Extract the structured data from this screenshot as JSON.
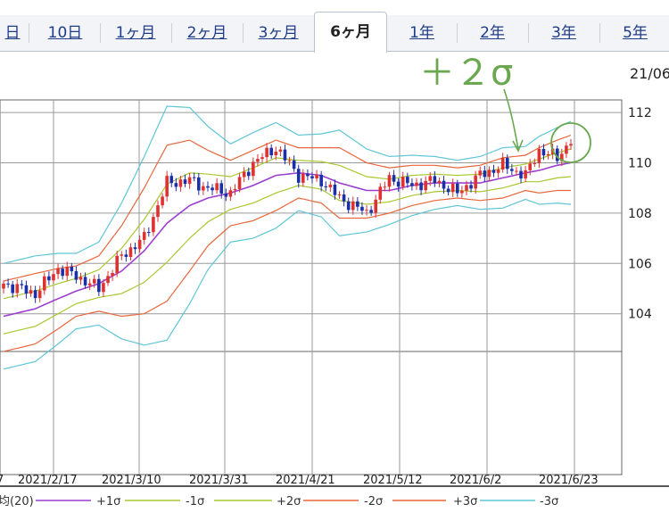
{
  "tabs": [
    {
      "label": "日"
    },
    {
      "label": "10日"
    },
    {
      "label": "1ヶ月"
    },
    {
      "label": "2ヶ月"
    },
    {
      "label": "3ヶ月"
    },
    {
      "label": "6ヶ月",
      "active": true
    },
    {
      "label": "1年"
    },
    {
      "label": "2年"
    },
    {
      "label": "3年"
    },
    {
      "label": "5年"
    }
  ],
  "annotation": {
    "text": "＋２σ",
    "color": "#6aa84f"
  },
  "top_date": "21/06",
  "chart_data": {
    "type": "candlestick",
    "ylim": [
      102.5,
      112.5
    ],
    "yticks": [
      104,
      106,
      108,
      110,
      112
    ],
    "xticks": [
      "7",
      "2021/2/17",
      "2021/3/10",
      "2021/3/31",
      "2021/4/21",
      "2021/5/12",
      "2021/6/2",
      "2021/6/23"
    ],
    "n": 126,
    "colors": {
      "up": "#e03131",
      "down": "#1b2fa8",
      "ma": "#9b3fd1",
      "s1": "#a8c830",
      "s2": "#e8663c",
      "s3": "#5fc6d6"
    },
    "anchors": {
      "idx": [
        0,
        7,
        12,
        16,
        21,
        26,
        31,
        36,
        41,
        45,
        50,
        55,
        60,
        65,
        70,
        74,
        80,
        85,
        90,
        95,
        100,
        105,
        110,
        115,
        118,
        122,
        125
      ],
      "close": [
        105.2,
        104.8,
        105.8,
        105.5,
        105.0,
        106.3,
        107.0,
        109.2,
        109.3,
        109.0,
        108.8,
        110.0,
        110.6,
        109.5,
        109.3,
        108.6,
        108.0,
        109.4,
        109.1,
        109.3,
        108.8,
        109.5,
        109.9,
        109.5,
        110.5,
        110.2,
        110.9
      ],
      "ma": [
        103.9,
        104.2,
        104.6,
        104.9,
        105.2,
        105.7,
        106.5,
        107.6,
        108.3,
        108.6,
        108.8,
        109.1,
        109.5,
        109.6,
        109.5,
        109.2,
        108.9,
        108.9,
        109.1,
        109.2,
        109.2,
        109.2,
        109.4,
        109.6,
        109.7,
        109.9,
        110.0
      ],
      "sd": [
        0.7,
        0.7,
        0.6,
        0.5,
        0.55,
        0.9,
        1.25,
        1.55,
        1.3,
        0.95,
        0.65,
        0.7,
        0.7,
        0.5,
        0.55,
        0.7,
        0.55,
        0.45,
        0.4,
        0.35,
        0.3,
        0.35,
        0.4,
        0.35,
        0.45,
        0.5,
        0.55
      ]
    }
  },
  "legend": [
    {
      "label": "均(20)",
      "color": "#9b3fd1"
    },
    {
      "label": "+1σ",
      "color": "#a8c830"
    },
    {
      "label": "-1σ",
      "color": "#a8c830"
    },
    {
      "label": "+2σ",
      "color": "#e8663c"
    },
    {
      "label": "-2σ",
      "color": "#e8663c"
    },
    {
      "label": "+3σ",
      "color": "#5fc6d6"
    },
    {
      "label": "-3σ",
      "color": "#5fc6d6"
    }
  ]
}
